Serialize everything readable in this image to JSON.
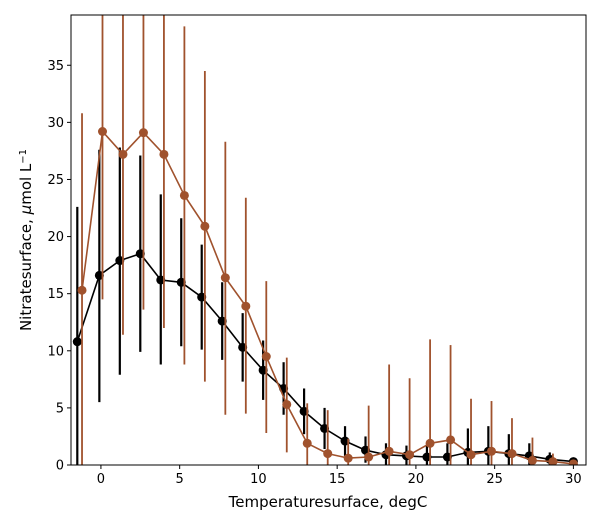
{
  "chart_data": {
    "type": "line",
    "xlabel": "Temperaturesurface,  degC",
    "ylabel_parts": [
      "Nitratesurface,  ",
      "μ",
      "mol L",
      "−1"
    ],
    "xlim": [
      -1.9,
      30.8
    ],
    "ylim": [
      0,
      39.4
    ],
    "x_ticks": [
      0,
      5,
      10,
      15,
      20,
      25,
      30
    ],
    "y_ticks": [
      0,
      5,
      10,
      15,
      20,
      25,
      30,
      35
    ],
    "grid": false,
    "colors": {
      "black_series": "#000000",
      "brown_series": "#a0522d"
    },
    "series": [
      {
        "color": "black_series",
        "points": [
          {
            "x": -1.5,
            "y": 10.8,
            "low": 0.0,
            "high": 22.6
          },
          {
            "x": -0.1,
            "y": 16.6,
            "low": 5.5,
            "high": 27.6
          },
          {
            "x": 1.2,
            "y": 17.9,
            "low": 7.9,
            "high": 27.8
          },
          {
            "x": 2.5,
            "y": 18.5,
            "low": 9.9,
            "high": 27.1
          },
          {
            "x": 3.8,
            "y": 16.2,
            "low": 8.8,
            "high": 23.7
          },
          {
            "x": 5.1,
            "y": 16.0,
            "low": 10.4,
            "high": 21.6
          },
          {
            "x": 6.4,
            "y": 14.7,
            "low": 10.1,
            "high": 19.3
          },
          {
            "x": 7.7,
            "y": 12.6,
            "low": 9.2,
            "high": 16.0
          },
          {
            "x": 9.0,
            "y": 10.3,
            "low": 7.3,
            "high": 13.3
          },
          {
            "x": 10.3,
            "y": 8.3,
            "low": 5.7,
            "high": 10.9
          },
          {
            "x": 11.6,
            "y": 6.7,
            "low": 4.4,
            "high": 9.0
          },
          {
            "x": 12.9,
            "y": 4.7,
            "low": 2.7,
            "high": 6.7
          },
          {
            "x": 14.2,
            "y": 3.2,
            "low": 1.4,
            "high": 5.0
          },
          {
            "x": 15.5,
            "y": 2.1,
            "low": 0.8,
            "high": 3.4
          },
          {
            "x": 16.8,
            "y": 1.3,
            "low": 0.2,
            "high": 2.5
          },
          {
            "x": 18.1,
            "y": 0.9,
            "low": 0.0,
            "high": 1.9
          },
          {
            "x": 19.4,
            "y": 0.8,
            "low": 0.0,
            "high": 1.7
          },
          {
            "x": 20.7,
            "y": 0.7,
            "low": 0.0,
            "high": 1.7
          },
          {
            "x": 22.0,
            "y": 0.7,
            "low": 0.0,
            "high": 1.9
          },
          {
            "x": 23.3,
            "y": 1.1,
            "low": 0.0,
            "high": 3.2
          },
          {
            "x": 24.6,
            "y": 1.2,
            "low": 0.0,
            "high": 3.4
          },
          {
            "x": 25.9,
            "y": 1.0,
            "low": 0.0,
            "high": 2.7
          },
          {
            "x": 27.2,
            "y": 0.8,
            "low": 0.0,
            "high": 1.9
          },
          {
            "x": 28.5,
            "y": 0.5,
            "low": 0.0,
            "high": 1.1
          },
          {
            "x": 30.0,
            "y": 0.3,
            "low": 0.0,
            "high": 0.6
          }
        ]
      },
      {
        "color": "brown_series",
        "points": [
          {
            "x": -1.2,
            "y": 15.3,
            "low": 0.0,
            "high": 30.8
          },
          {
            "x": 0.1,
            "y": 29.2,
            "low": 14.5,
            "high": 43.0
          },
          {
            "x": 1.4,
            "y": 27.2,
            "low": 11.4,
            "high": 43.0
          },
          {
            "x": 2.7,
            "y": 29.1,
            "low": 13.6,
            "high": 43.0
          },
          {
            "x": 4.0,
            "y": 27.2,
            "low": 12.0,
            "high": 43.0
          },
          {
            "x": 5.3,
            "y": 23.6,
            "low": 8.8,
            "high": 38.4
          },
          {
            "x": 6.6,
            "y": 20.9,
            "low": 7.3,
            "high": 34.5
          },
          {
            "x": 7.9,
            "y": 16.4,
            "low": 4.4,
            "high": 28.3
          },
          {
            "x": 9.2,
            "y": 13.9,
            "low": 4.5,
            "high": 23.4
          },
          {
            "x": 10.5,
            "y": 9.5,
            "low": 2.8,
            "high": 16.1
          },
          {
            "x": 11.8,
            "y": 5.3,
            "low": 1.1,
            "high": 9.4
          },
          {
            "x": 13.1,
            "y": 1.9,
            "low": 0.0,
            "high": 5.4
          },
          {
            "x": 14.4,
            "y": 1.0,
            "low": 0.0,
            "high": 4.8
          },
          {
            "x": 15.7,
            "y": 0.6,
            "low": 0.0,
            "high": 2.3
          },
          {
            "x": 17.0,
            "y": 0.7,
            "low": 0.0,
            "high": 5.2
          },
          {
            "x": 18.3,
            "y": 1.2,
            "low": 0.0,
            "high": 8.8
          },
          {
            "x": 19.6,
            "y": 0.9,
            "low": 0.0,
            "high": 7.6
          },
          {
            "x": 20.9,
            "y": 1.9,
            "low": 0.0,
            "high": 11.0
          },
          {
            "x": 22.2,
            "y": 2.2,
            "low": 0.0,
            "high": 10.5
          },
          {
            "x": 23.5,
            "y": 0.9,
            "low": 0.0,
            "high": 5.8
          },
          {
            "x": 24.8,
            "y": 1.2,
            "low": 0.0,
            "high": 5.6
          },
          {
            "x": 26.1,
            "y": 1.0,
            "low": 0.0,
            "high": 4.1
          },
          {
            "x": 27.4,
            "y": 0.4,
            "low": 0.0,
            "high": 2.4
          },
          {
            "x": 28.7,
            "y": 0.3,
            "low": 0.0,
            "high": 1.0
          },
          {
            "x": 30.0,
            "y": 0.1,
            "low": 0.0,
            "high": 0.4
          }
        ]
      }
    ]
  }
}
